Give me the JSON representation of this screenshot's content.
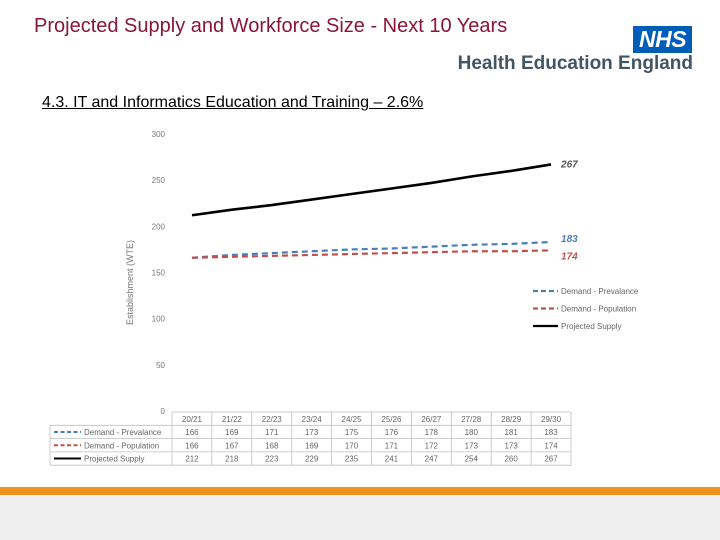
{
  "header": {
    "title": "Projected Supply and Workforce Size - Next 10 Years",
    "logo_text": "NHS",
    "org_name": "Health Education England",
    "section_heading": "4.3. IT and Informatics Education and Training – 2.6%"
  },
  "colors": {
    "title": "#8a1538",
    "nhs_blue": "#005eb8",
    "accent_orange": "#f0931e",
    "demand_prevalance": "#4a7ebb",
    "demand_population": "#c0504d",
    "projected_supply": "#000000"
  },
  "chart_data": {
    "type": "line",
    "title": "",
    "xlabel": "",
    "ylabel": "Establishment (WTE)",
    "ylim": [
      0,
      300
    ],
    "yticks": [
      0,
      50,
      100,
      150,
      200,
      250,
      300
    ],
    "categories": [
      "20/21",
      "21/22",
      "22/23",
      "23/24",
      "24/25",
      "25/26",
      "26/27",
      "27/28",
      "28/29",
      "29/30"
    ],
    "grid": false,
    "legend_position": "right",
    "data_table": true,
    "series": [
      {
        "name": "Demand - Prevalance",
        "style": "dashed",
        "color": "#4a7ebb",
        "values": [
          166,
          169,
          171,
          173,
          175,
          176,
          178,
          180,
          181,
          183
        ],
        "end_label": "183"
      },
      {
        "name": "Demand - Population",
        "style": "dashed",
        "color": "#c0504d",
        "values": [
          166,
          167,
          168,
          169,
          170,
          171,
          172,
          173,
          173,
          174
        ],
        "end_label": "174"
      },
      {
        "name": "Projected Supply",
        "style": "solid",
        "color": "#000000",
        "values": [
          212,
          218,
          223,
          229,
          235,
          241,
          247,
          254,
          260,
          267
        ],
        "end_label": "267"
      }
    ]
  }
}
